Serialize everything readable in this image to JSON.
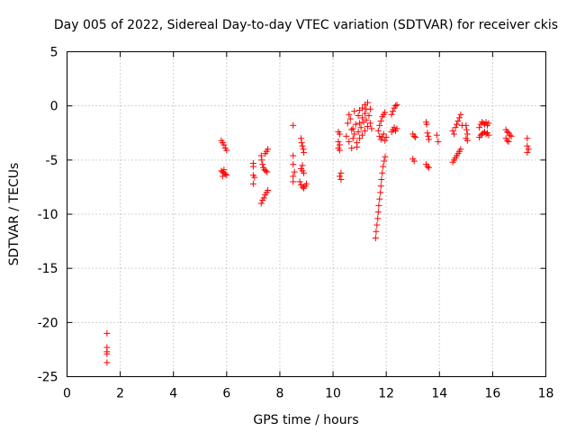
{
  "chart_data": {
    "type": "scatter",
    "title": "Day 005 of 2022, Sidereal Day-to-day VTEC variation (SDTVAR) for receiver ckis",
    "xlabel": "GPS time / hours",
    "ylabel": "SDTVAR / TECUs",
    "xlim": [
      0,
      18
    ],
    "ylim": [
      -25,
      5
    ],
    "xticks": [
      "0",
      "2",
      "4",
      "6",
      "8",
      "10",
      "12",
      "14",
      "16",
      "18"
    ],
    "yticks": [
      "-25",
      "-20",
      "-15",
      "-10",
      "-5",
      "0",
      "5"
    ],
    "grid": true,
    "marker": "+",
    "color": "#ff0000",
    "series": [
      {
        "name": "SDTVAR",
        "points": [
          [
            1.5,
            -21.0
          ],
          [
            1.5,
            -22.3
          ],
          [
            1.5,
            -22.7
          ],
          [
            1.5,
            -22.9
          ],
          [
            1.5,
            -23.7
          ],
          [
            5.8,
            -3.2
          ],
          [
            5.85,
            -3.4
          ],
          [
            5.9,
            -3.6
          ],
          [
            5.95,
            -3.9
          ],
          [
            6.0,
            -4.1
          ],
          [
            5.8,
            -6.0
          ],
          [
            5.85,
            -6.1
          ],
          [
            5.9,
            -6.2
          ],
          [
            5.95,
            -6.3
          ],
          [
            6.0,
            -6.4
          ],
          [
            5.85,
            -6.5
          ],
          [
            5.9,
            -5.9
          ],
          [
            7.0,
            -5.3
          ],
          [
            7.0,
            -5.6
          ],
          [
            7.0,
            -6.4
          ],
          [
            7.05,
            -6.6
          ],
          [
            7.0,
            -7.2
          ],
          [
            7.3,
            -4.6
          ],
          [
            7.32,
            -5.0
          ],
          [
            7.35,
            -5.4
          ],
          [
            7.38,
            -5.7
          ],
          [
            7.42,
            -5.9
          ],
          [
            7.47,
            -6.0
          ],
          [
            7.52,
            -6.1
          ],
          [
            7.45,
            -4.4
          ],
          [
            7.5,
            -4.2
          ],
          [
            7.55,
            -4.0
          ],
          [
            7.3,
            -9.0
          ],
          [
            7.35,
            -8.7
          ],
          [
            7.4,
            -8.5
          ],
          [
            7.45,
            -8.2
          ],
          [
            7.5,
            -8.0
          ],
          [
            7.55,
            -7.8
          ],
          [
            8.5,
            -1.8
          ],
          [
            8.5,
            -4.6
          ],
          [
            8.5,
            -5.4
          ],
          [
            8.55,
            -6.1
          ],
          [
            8.5,
            -6.5
          ],
          [
            8.5,
            -7.0
          ],
          [
            8.8,
            -3.0
          ],
          [
            8.82,
            -3.4
          ],
          [
            8.85,
            -3.7
          ],
          [
            8.88,
            -4.0
          ],
          [
            8.9,
            -4.3
          ],
          [
            8.85,
            -5.5
          ],
          [
            8.8,
            -5.8
          ],
          [
            8.85,
            -6.0
          ],
          [
            8.9,
            -6.2
          ],
          [
            8.75,
            -7.0
          ],
          [
            8.8,
            -7.3
          ],
          [
            8.85,
            -7.5
          ],
          [
            8.9,
            -7.6
          ],
          [
            8.95,
            -7.4
          ],
          [
            9.0,
            -7.2
          ],
          [
            10.2,
            -2.4
          ],
          [
            10.25,
            -2.6
          ],
          [
            10.2,
            -3.3
          ],
          [
            10.25,
            -3.6
          ],
          [
            10.2,
            -3.9
          ],
          [
            10.25,
            -4.1
          ],
          [
            10.3,
            -6.2
          ],
          [
            10.25,
            -6.5
          ],
          [
            10.3,
            -6.8
          ],
          [
            10.5,
            -2.8
          ],
          [
            10.55,
            -1.6
          ],
          [
            10.6,
            -0.8
          ],
          [
            10.6,
            -3.3
          ],
          [
            10.65,
            -1.2
          ],
          [
            10.7,
            -2.2
          ],
          [
            10.7,
            -3.9
          ],
          [
            10.75,
            -3.0
          ],
          [
            10.8,
            -0.5
          ],
          [
            10.8,
            -2.6
          ],
          [
            10.85,
            -1.7
          ],
          [
            10.9,
            -3.4
          ],
          [
            10.95,
            -0.9
          ],
          [
            10.95,
            -2.4
          ],
          [
            11.0,
            -0.4
          ],
          [
            11.0,
            -1.6
          ],
          [
            11.0,
            -3.0
          ],
          [
            11.05,
            -2.0
          ],
          [
            11.1,
            -0.2
          ],
          [
            11.1,
            -1.1
          ],
          [
            11.1,
            -2.7
          ],
          [
            11.15,
            -1.5
          ],
          [
            11.2,
            0.1
          ],
          [
            11.2,
            -0.7
          ],
          [
            11.2,
            -2.3
          ],
          [
            11.25,
            -1.3
          ],
          [
            11.3,
            0.3
          ],
          [
            11.3,
            -1.9
          ],
          [
            11.35,
            -0.9
          ],
          [
            11.4,
            -1.6
          ],
          [
            11.4,
            -0.3
          ],
          [
            11.45,
            -2.1
          ],
          [
            10.9,
            -3.8
          ],
          [
            10.75,
            -2.1
          ],
          [
            11.25,
            -0.3
          ],
          [
            11.6,
            -12.2
          ],
          [
            11.62,
            -11.6
          ],
          [
            11.65,
            -11.0
          ],
          [
            11.68,
            -10.4
          ],
          [
            11.7,
            -9.8
          ],
          [
            11.72,
            -9.2
          ],
          [
            11.75,
            -8.6
          ],
          [
            11.78,
            -8.0
          ],
          [
            11.8,
            -7.4
          ],
          [
            11.82,
            -6.8
          ],
          [
            11.85,
            -6.2
          ],
          [
            11.88,
            -5.6
          ],
          [
            11.92,
            -5.1
          ],
          [
            11.96,
            -4.7
          ],
          [
            11.7,
            -2.3
          ],
          [
            11.75,
            -1.8
          ],
          [
            11.8,
            -1.4
          ],
          [
            11.85,
            -1.0
          ],
          [
            11.9,
            -0.8
          ],
          [
            11.95,
            -0.6
          ],
          [
            11.75,
            -2.8
          ],
          [
            11.8,
            -3.1
          ],
          [
            11.85,
            -2.9
          ],
          [
            11.9,
            -2.6
          ],
          [
            11.95,
            -3.2
          ],
          [
            12.0,
            -2.9
          ],
          [
            12.2,
            -2.4
          ],
          [
            12.25,
            -2.2
          ],
          [
            12.3,
            -2.0
          ],
          [
            12.35,
            -2.3
          ],
          [
            12.4,
            -2.1
          ],
          [
            12.2,
            -0.8
          ],
          [
            12.25,
            -0.5
          ],
          [
            12.3,
            -0.2
          ],
          [
            12.35,
            0.0
          ],
          [
            12.4,
            0.1
          ],
          [
            13.0,
            -2.6
          ],
          [
            13.05,
            -2.8
          ],
          [
            13.1,
            -2.9
          ],
          [
            13.0,
            -4.9
          ],
          [
            13.05,
            -5.1
          ],
          [
            13.5,
            -1.5
          ],
          [
            13.52,
            -1.7
          ],
          [
            13.55,
            -2.5
          ],
          [
            13.58,
            -2.8
          ],
          [
            13.6,
            -3.1
          ],
          [
            13.5,
            -5.4
          ],
          [
            13.55,
            -5.6
          ],
          [
            13.6,
            -5.7
          ],
          [
            13.9,
            -2.7
          ],
          [
            13.95,
            -3.3
          ],
          [
            14.5,
            -2.3
          ],
          [
            14.55,
            -2.6
          ],
          [
            14.6,
            -2.0
          ],
          [
            14.65,
            -1.7
          ],
          [
            14.7,
            -1.4
          ],
          [
            14.75,
            -1.1
          ],
          [
            14.8,
            -0.8
          ],
          [
            14.85,
            -1.8
          ],
          [
            14.5,
            -5.2
          ],
          [
            14.55,
            -5.0
          ],
          [
            14.6,
            -4.8
          ],
          [
            14.65,
            -4.6
          ],
          [
            14.7,
            -4.4
          ],
          [
            14.75,
            -4.2
          ],
          [
            14.8,
            -4.0
          ],
          [
            15.0,
            -1.8
          ],
          [
            15.02,
            -2.2
          ],
          [
            15.05,
            -2.6
          ],
          [
            15.0,
            -3.0
          ],
          [
            15.05,
            -3.2
          ],
          [
            15.5,
            -2.0
          ],
          [
            15.55,
            -1.7
          ],
          [
            15.6,
            -1.5
          ],
          [
            15.65,
            -1.6
          ],
          [
            15.7,
            -1.7
          ],
          [
            15.75,
            -1.5
          ],
          [
            15.8,
            -1.8
          ],
          [
            15.85,
            -1.6
          ],
          [
            15.5,
            -2.9
          ],
          [
            15.55,
            -2.7
          ],
          [
            15.6,
            -2.6
          ],
          [
            15.65,
            -2.5
          ],
          [
            15.7,
            -2.4
          ],
          [
            15.75,
            -2.6
          ],
          [
            15.8,
            -2.5
          ],
          [
            15.85,
            -2.7
          ],
          [
            16.5,
            -2.2
          ],
          [
            16.55,
            -2.4
          ],
          [
            16.6,
            -2.5
          ],
          [
            16.65,
            -2.7
          ],
          [
            16.7,
            -2.8
          ],
          [
            16.5,
            -3.0
          ],
          [
            16.55,
            -3.2
          ],
          [
            16.6,
            -3.3
          ],
          [
            17.3,
            -3.0
          ],
          [
            17.3,
            -3.7
          ],
          [
            17.35,
            -4.0
          ],
          [
            17.3,
            -4.3
          ]
        ]
      }
    ]
  }
}
